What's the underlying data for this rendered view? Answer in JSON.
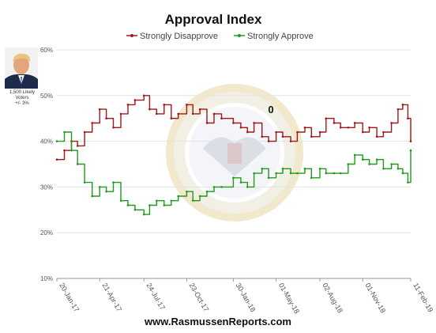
{
  "chart_data": {
    "type": "line",
    "title": "Approval Index",
    "legend_position": "top-center",
    "grid": true,
    "ylim": [
      10,
      60
    ],
    "yticks": [
      "10%",
      "20%",
      "30%",
      "40%",
      "50%",
      "60%"
    ],
    "ytick_values": [
      10,
      20,
      30,
      40,
      50,
      60
    ],
    "xlim": [
      "2017-01-20",
      "2019-02-11"
    ],
    "xticks": [
      "20-Jan-17",
      "21-Apr-17",
      "24-Jul-17",
      "23-Oct-17",
      "30-Jan-18",
      "01-May-18",
      "02-Aug-18",
      "01-Nov-18",
      "11-Feb-19"
    ],
    "xtick_dates": [
      "2017-01-20",
      "2017-04-21",
      "2017-07-24",
      "2017-10-23",
      "2018-01-30",
      "2018-05-01",
      "2018-08-02",
      "2018-11-01",
      "2019-02-11"
    ],
    "annotation": "0",
    "series": [
      {
        "name": "Strongly Disapprove",
        "color": "#a01818",
        "x": [
          "2017-01-20",
          "2017-02-05",
          "2017-02-20",
          "2017-03-05",
          "2017-03-20",
          "2017-04-05",
          "2017-04-21",
          "2017-05-05",
          "2017-05-20",
          "2017-06-05",
          "2017-06-20",
          "2017-07-05",
          "2017-07-24",
          "2017-08-05",
          "2017-08-20",
          "2017-09-05",
          "2017-09-20",
          "2017-10-05",
          "2017-10-23",
          "2017-11-05",
          "2017-11-20",
          "2017-12-05",
          "2017-12-20",
          "2018-01-05",
          "2018-01-30",
          "2018-02-15",
          "2018-03-01",
          "2018-03-15",
          "2018-04-01",
          "2018-04-15",
          "2018-05-01",
          "2018-05-15",
          "2018-06-01",
          "2018-06-15",
          "2018-07-01",
          "2018-07-15",
          "2018-08-02",
          "2018-08-15",
          "2018-09-01",
          "2018-09-15",
          "2018-10-01",
          "2018-10-15",
          "2018-11-01",
          "2018-11-15",
          "2018-12-01",
          "2018-12-15",
          "2019-01-01",
          "2019-01-15",
          "2019-01-25",
          "2019-02-05",
          "2019-02-11"
        ],
        "y": [
          36,
          38,
          40,
          39,
          42,
          44,
          47,
          45,
          43,
          46,
          48,
          49,
          50,
          47,
          46,
          48,
          45,
          46,
          48,
          46,
          47,
          44,
          46,
          45,
          44,
          43,
          42,
          44,
          41,
          40,
          42,
          41,
          40,
          42,
          43,
          41,
          42,
          45,
          44,
          43,
          43,
          44,
          42,
          43,
          41,
          42,
          44,
          47,
          48,
          45,
          40
        ]
      },
      {
        "name": "Strongly Approve",
        "color": "#1f9a1f",
        "x": [
          "2017-01-20",
          "2017-02-05",
          "2017-02-20",
          "2017-03-05",
          "2017-03-20",
          "2017-04-05",
          "2017-04-21",
          "2017-05-05",
          "2017-05-20",
          "2017-06-05",
          "2017-06-20",
          "2017-07-05",
          "2017-07-24",
          "2017-08-05",
          "2017-08-20",
          "2017-09-05",
          "2017-09-20",
          "2017-10-05",
          "2017-10-23",
          "2017-11-05",
          "2017-11-20",
          "2017-12-05",
          "2017-12-20",
          "2018-01-05",
          "2018-01-30",
          "2018-02-15",
          "2018-03-01",
          "2018-03-15",
          "2018-04-01",
          "2018-04-15",
          "2018-05-01",
          "2018-05-15",
          "2018-06-01",
          "2018-06-15",
          "2018-07-01",
          "2018-07-15",
          "2018-08-02",
          "2018-08-15",
          "2018-09-01",
          "2018-09-15",
          "2018-10-01",
          "2018-10-15",
          "2018-11-01",
          "2018-11-15",
          "2018-12-01",
          "2018-12-15",
          "2019-01-01",
          "2019-01-15",
          "2019-01-25",
          "2019-02-05",
          "2019-02-11"
        ],
        "y": [
          40,
          42,
          38,
          35,
          31,
          28,
          30,
          29,
          31,
          27,
          26,
          25,
          24,
          26,
          27,
          26,
          27,
          28,
          29,
          27,
          28,
          29,
          30,
          30,
          32,
          31,
          30,
          33,
          34,
          32,
          33,
          34,
          33,
          33,
          34,
          32,
          34,
          33,
          33,
          33,
          35,
          37,
          36,
          35,
          36,
          34,
          35,
          34,
          33,
          31,
          38
        ]
      }
    ]
  },
  "sidebar": {
    "photo_icon": "person-portrait-icon",
    "caption_line1": "1,500 Likely",
    "caption_line2": "Voters",
    "caption_line3": "+/- 3%"
  },
  "watermark_icon": "presidential-seal-icon",
  "footer": {
    "site": "www.RasmussenReports.com"
  }
}
